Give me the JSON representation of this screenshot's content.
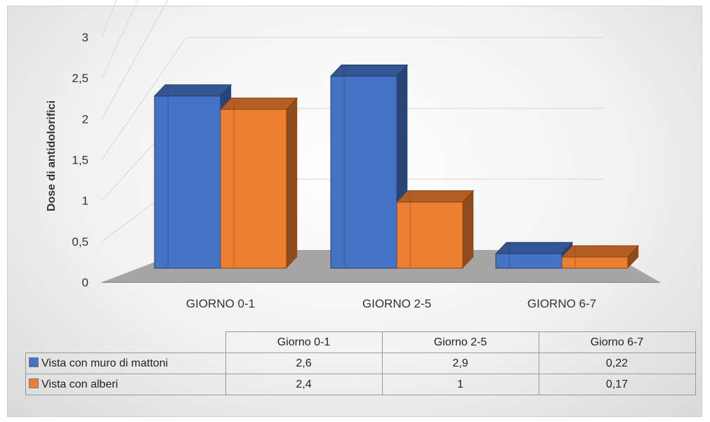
{
  "chart_data": {
    "type": "bar",
    "title": "",
    "ylabel": "Dose di antidolorifici",
    "xlabel": "",
    "ylim": [
      0,
      3
    ],
    "yticks": [
      "0",
      "0,5",
      "1",
      "1,5",
      "2",
      "2,5",
      "3"
    ],
    "categories": [
      "GIORNO 0-1",
      "GIORNO 2-5",
      "GIORNO 6-7"
    ],
    "series": [
      {
        "name": "Vista con muro di mattoni",
        "color": "#4472c4",
        "values": [
          2.6,
          2.9,
          0.22
        ],
        "labels": [
          "2,6",
          "2,9",
          "0,22"
        ]
      },
      {
        "name": "Vista con alberi",
        "color": "#ed7d31",
        "values": [
          2.4,
          1,
          0.17
        ],
        "labels": [
          "2,4",
          "1",
          "0,17"
        ]
      }
    ],
    "grid": true,
    "legend": "data table below chart",
    "table_columns": [
      "Giorno 0-1",
      "Giorno 2-5",
      "Giorno 6-7"
    ]
  }
}
